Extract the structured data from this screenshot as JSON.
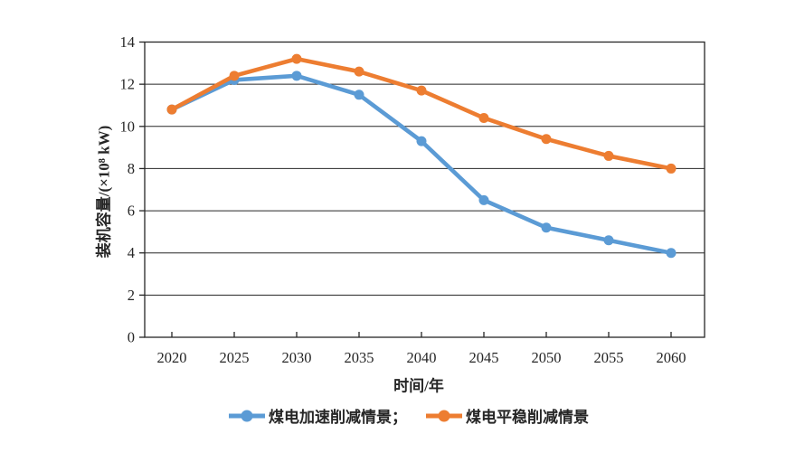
{
  "chart_data": {
    "type": "line",
    "x": [
      2020,
      2025,
      2030,
      2035,
      2040,
      2045,
      2050,
      2055,
      2060
    ],
    "x_tick_labels": [
      "2020",
      "2025",
      "2030",
      "2035",
      "2040",
      "2045",
      "2050",
      "2055",
      "2060"
    ],
    "y_tick_labels": [
      "0",
      "2",
      "4",
      "6",
      "8",
      "10",
      "12",
      "14"
    ],
    "series": [
      {
        "name": "煤电加速削减情景",
        "color": "#5B9BD5",
        "values": [
          10.8,
          12.2,
          12.4,
          11.5,
          9.3,
          6.5,
          5.2,
          4.6,
          4.0
        ]
      },
      {
        "name": "煤电平稳削减情景",
        "color": "#ED7D31",
        "values": [
          10.8,
          12.4,
          13.2,
          12.6,
          11.7,
          10.4,
          9.4,
          8.6,
          8.0
        ]
      }
    ],
    "xlabel": "时间/年",
    "ylabel": "装机容量/(×10⁸ kW)",
    "ylim": [
      0,
      14
    ],
    "ytick_step": 2,
    "grid": "horizontal",
    "legend_position": "bottom",
    "axis_color": "#262626",
    "background": "#ffffff"
  },
  "legend": {
    "items": [
      {
        "label": "煤电加速削减情景；",
        "color": "#5B9BD5",
        "marker": "line-circle"
      },
      {
        "label": "煤电平稳削减情景",
        "color": "#ED7D31",
        "marker": "line-circle"
      }
    ]
  }
}
